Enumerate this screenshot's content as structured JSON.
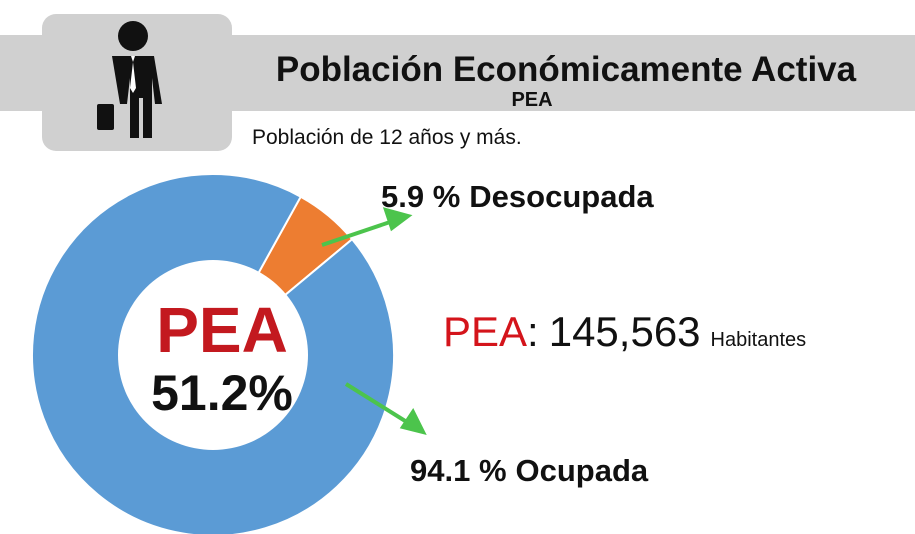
{
  "title": "Población Económicamente Activa",
  "subtitle": "PEA",
  "note": "Población de 12 años y más.",
  "chart_data": {
    "type": "pie",
    "donut": true,
    "categories": [
      "Desocupada",
      "Ocupada"
    ],
    "values": [
      5.9,
      94.1
    ],
    "value_labels": [
      "5.9 %",
      "94.1 %"
    ],
    "colors": [
      "#ed7d31",
      "#5b9bd5"
    ],
    "center_label": "PEA",
    "center_value": "51.2%"
  },
  "total": {
    "label": "PEA",
    "separator": ":",
    "value": "145,563",
    "unit": "Habitantes"
  }
}
